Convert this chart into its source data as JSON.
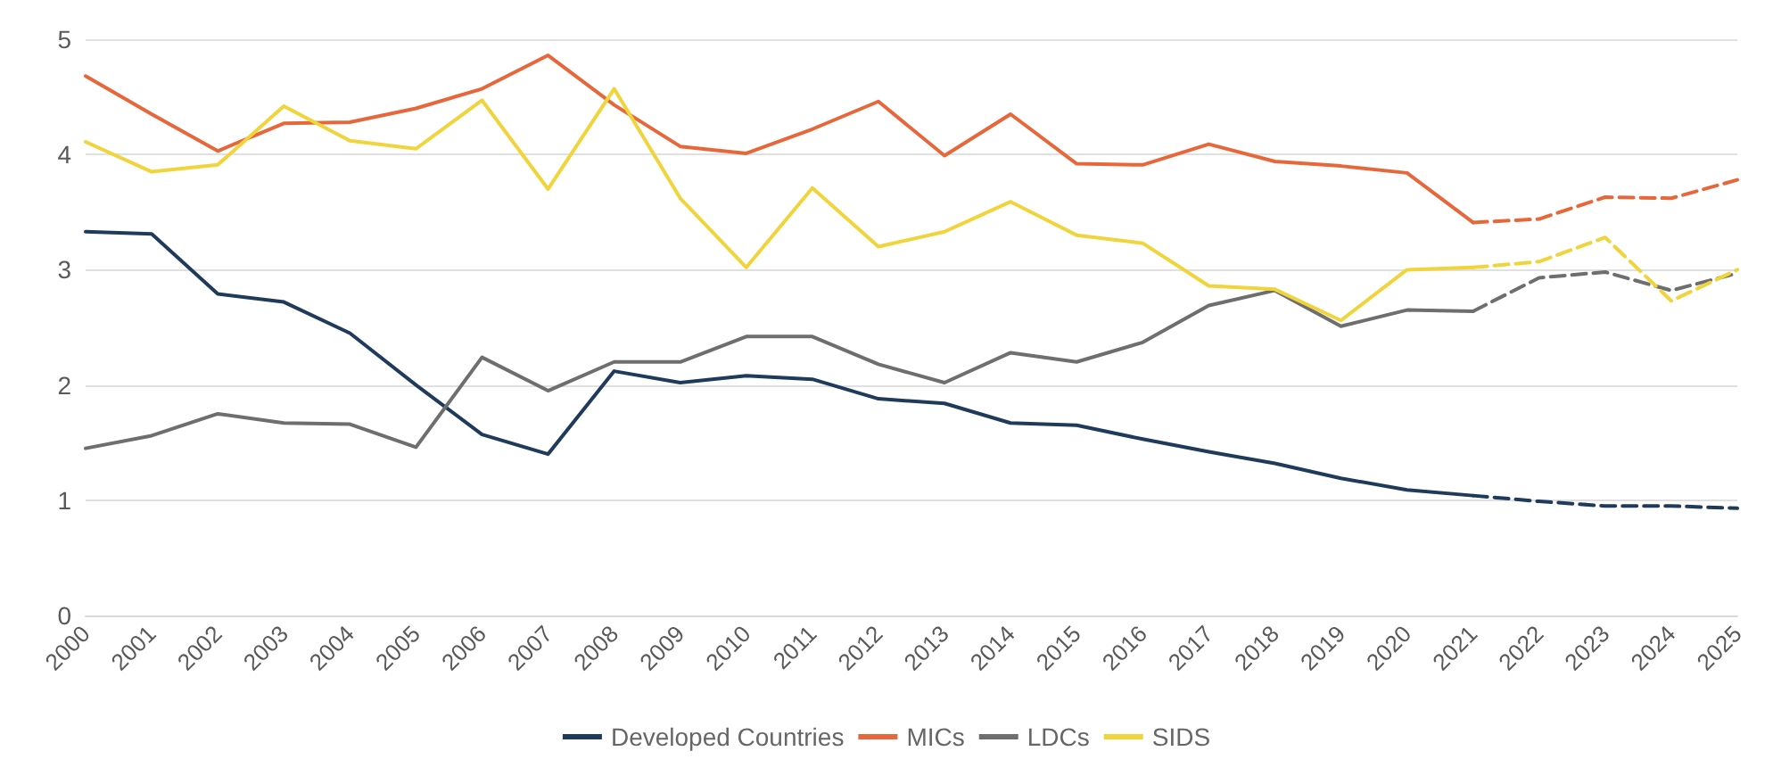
{
  "chart_data": {
    "type": "line",
    "categories": [
      "2000",
      "2001",
      "2002",
      "2003",
      "2004",
      "2005",
      "2006",
      "2007",
      "2008",
      "2009",
      "2010",
      "2011",
      "2012",
      "2013",
      "2014",
      "2015",
      "2016",
      "2017",
      "2018",
      "2019",
      "2020",
      "2021",
      "2022",
      "2023",
      "2024",
      "2025"
    ],
    "series": [
      {
        "name": "Developed Countries",
        "color": "#1f3b5c",
        "line_style": "solid",
        "values": [
          3.33,
          3.31,
          2.79,
          2.72,
          2.45,
          2.0,
          1.57,
          1.4,
          2.12,
          2.02,
          2.08,
          2.05,
          1.88,
          1.84,
          1.67,
          1.65,
          1.53,
          1.42,
          1.32,
          1.19,
          1.09,
          1.04,
          null,
          null,
          null,
          null
        ]
      },
      {
        "name": "MICs",
        "color": "#e8673a",
        "line_style": "solid",
        "values": [
          4.68,
          4.35,
          4.03,
          4.27,
          4.28,
          4.4,
          4.57,
          4.86,
          4.43,
          4.07,
          4.01,
          4.22,
          4.46,
          3.99,
          4.35,
          3.92,
          3.91,
          4.09,
          3.94,
          3.9,
          3.84,
          3.41,
          null,
          null,
          null,
          null
        ]
      },
      {
        "name": "LDCs",
        "color": "#6e6e6e",
        "line_style": "solid",
        "values": [
          1.45,
          1.56,
          1.75,
          1.67,
          1.66,
          1.46,
          2.24,
          1.95,
          2.2,
          2.2,
          2.42,
          2.42,
          2.18,
          2.02,
          2.28,
          2.2,
          2.37,
          2.69,
          2.82,
          2.51,
          2.65,
          2.64,
          null,
          null,
          null,
          null
        ]
      },
      {
        "name": "SIDS",
        "color": "#f0d43a",
        "line_style": "solid",
        "values": [
          4.11,
          3.85,
          3.91,
          4.42,
          4.12,
          4.05,
          4.47,
          3.7,
          4.57,
          3.62,
          3.02,
          3.71,
          3.2,
          3.33,
          3.59,
          3.3,
          3.23,
          2.86,
          2.83,
          2.56,
          3.0,
          3.02,
          null,
          null,
          null,
          null
        ]
      },
      {
        "color": "#1f3b5c",
        "line_style": "dashed",
        "values": [
          null,
          null,
          null,
          null,
          null,
          null,
          null,
          null,
          null,
          null,
          null,
          null,
          null,
          null,
          null,
          null,
          null,
          null,
          null,
          null,
          null,
          1.04,
          0.99,
          0.95,
          0.95,
          0.93
        ]
      },
      {
        "color": "#e8673a",
        "line_style": "dashed",
        "values": [
          null,
          null,
          null,
          null,
          null,
          null,
          null,
          null,
          null,
          null,
          null,
          null,
          null,
          null,
          null,
          null,
          null,
          null,
          null,
          null,
          null,
          3.41,
          3.44,
          3.63,
          3.62,
          3.78
        ]
      },
      {
        "color": "#6e6e6e",
        "line_style": "dashed",
        "values": [
          null,
          null,
          null,
          null,
          null,
          null,
          null,
          null,
          null,
          null,
          null,
          null,
          null,
          null,
          null,
          null,
          null,
          null,
          null,
          null,
          null,
          2.64,
          2.93,
          2.98,
          2.82,
          2.97
        ]
      },
      {
        "color": "#f0d43a",
        "line_style": "dashed",
        "values": [
          null,
          null,
          null,
          null,
          null,
          null,
          null,
          null,
          null,
          null,
          null,
          null,
          null,
          null,
          null,
          null,
          null,
          null,
          null,
          null,
          null,
          3.02,
          3.07,
          3.28,
          2.73,
          3.0
        ]
      }
    ],
    "ylim": [
      0,
      5
    ],
    "yticks": [
      0,
      1,
      2,
      3,
      4,
      5
    ],
    "grid": "y",
    "legend": "bottom",
    "marker": "none"
  }
}
